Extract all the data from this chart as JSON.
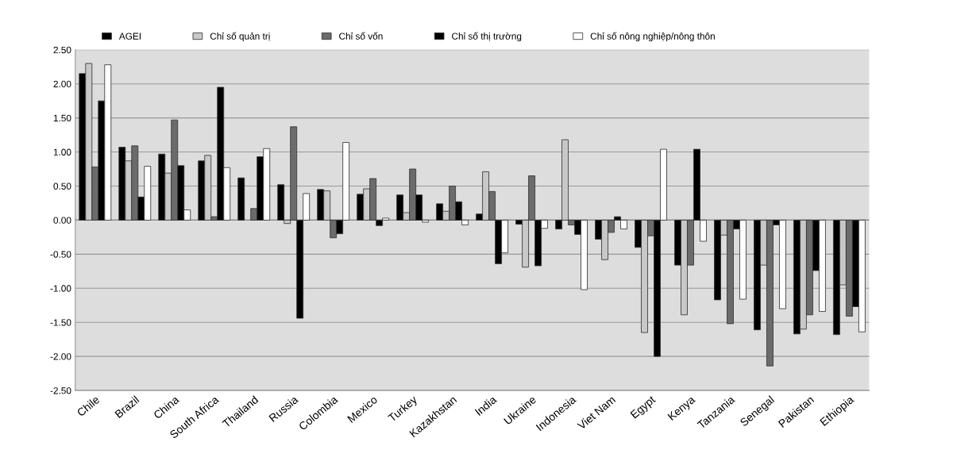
{
  "chart_data": {
    "type": "bar",
    "categories": [
      "Chile",
      "Brazil",
      "China",
      "South Africa",
      "Thailand",
      "Russia",
      "Colombia",
      "Mexico",
      "Turkey",
      "Kazakhstan",
      "India",
      "Ukraine",
      "Indonesia",
      "Viet Nam",
      "Egypt",
      "Kenya",
      "Tanzania",
      "Senegal",
      "Pakistan",
      "Ethiopia"
    ],
    "series": [
      {
        "name": "AGEI",
        "color": "#000000",
        "values": [
          2.15,
          1.07,
          0.97,
          0.87,
          0.62,
          0.52,
          0.45,
          0.38,
          0.37,
          0.24,
          0.09,
          -0.06,
          -0.13,
          -0.28,
          -0.4,
          -0.66,
          -1.17,
          -1.61,
          -1.67,
          -1.68
        ]
      },
      {
        "name": "Chỉ số quản trị",
        "color": "#c8c8c8",
        "values": [
          2.3,
          0.87,
          0.69,
          0.95,
          null,
          -0.05,
          0.43,
          0.46,
          0.11,
          0.13,
          0.71,
          -0.69,
          1.18,
          -0.58,
          -1.65,
          -1.39,
          -0.22,
          -0.66,
          -1.6,
          -0.95
        ]
      },
      {
        "name": "Chỉ số vốn",
        "color": "#6b6b6b",
        "values": [
          0.78,
          1.09,
          1.47,
          0.05,
          0.17,
          1.37,
          -0.26,
          0.61,
          0.75,
          0.5,
          0.42,
          0.65,
          -0.07,
          -0.18,
          -0.23,
          -0.66,
          -1.52,
          -2.14,
          -1.39,
          -1.41
        ]
      },
      {
        "name": "Chỉ số thị trường",
        "color": "#000000",
        "values": [
          1.75,
          0.34,
          0.8,
          1.95,
          0.93,
          -1.44,
          -0.2,
          -0.08,
          0.37,
          0.27,
          -0.64,
          -0.67,
          -0.21,
          0.05,
          -2.0,
          1.04,
          -0.13,
          -0.07,
          -0.74,
          -1.27
        ]
      },
      {
        "name": "Chỉ số nông nghiệp/nông thôn",
        "color": "#ffffff",
        "values": [
          2.28,
          0.79,
          0.15,
          0.77,
          1.05,
          0.39,
          1.14,
          0.03,
          -0.03,
          -0.07,
          -0.48,
          -0.12,
          -1.02,
          -0.13,
          1.04,
          -0.31,
          -1.16,
          -1.3,
          -1.34,
          -1.64
        ]
      }
    ],
    "ylim": [
      -2.5,
      2.5
    ],
    "yticks": [
      {
        "value": 2.5,
        "label": "2.50"
      },
      {
        "value": 2.0,
        "label": "2.00"
      },
      {
        "value": 1.5,
        "label": "1.50"
      },
      {
        "value": 1.0,
        "label": "1.00"
      },
      {
        "value": 0.5,
        "label": "0.50"
      },
      {
        "value": 0.0,
        "label": "0.00"
      },
      {
        "value": -0.5,
        "label": "-0.50"
      },
      {
        "value": -1.0,
        "label": "-1.00"
      },
      {
        "value": -1.5,
        "label": "-1.50"
      },
      {
        "value": -2.0,
        "label": "-2.00"
      },
      {
        "value": -2.5,
        "label": "-2.50"
      }
    ],
    "grid": "y",
    "legend": "top"
  }
}
